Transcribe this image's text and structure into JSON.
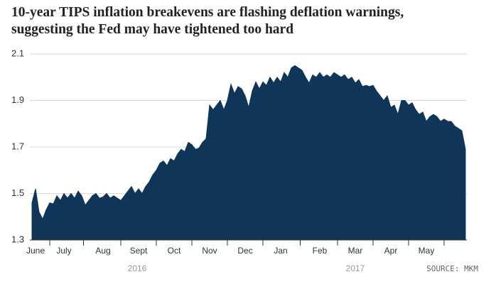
{
  "chart_data": {
    "type": "area",
    "title": "10-year TIPS inflation breakevens are flashing deflation warnings, suggesting the Fed may have tightened too hard",
    "categories": [
      null,
      "June",
      null,
      null,
      null,
      null,
      null,
      null,
      null,
      "July",
      null,
      null,
      null,
      null,
      null,
      null,
      null,
      null,
      null,
      null,
      "Aug",
      null,
      null,
      null,
      null,
      null,
      null,
      null,
      null,
      null,
      "Sept",
      null,
      null,
      null,
      null,
      null,
      null,
      null,
      null,
      null,
      "Oct",
      null,
      null,
      null,
      null,
      null,
      null,
      null,
      null,
      null,
      "Nov",
      null,
      null,
      null,
      null,
      null,
      null,
      null,
      null,
      null,
      "Dec",
      null,
      null,
      null,
      null,
      null,
      null,
      null,
      null,
      null,
      "Jan",
      null,
      null,
      null,
      null,
      null,
      null,
      null,
      null,
      null,
      null,
      "Feb",
      null,
      null,
      null,
      null,
      null,
      null,
      null,
      null,
      null,
      "Mar",
      null,
      null,
      null,
      null,
      null,
      null,
      null,
      null,
      null,
      "Apr",
      null,
      null,
      null,
      null,
      null,
      null,
      null,
      null,
      null,
      "May",
      null,
      null,
      null,
      null,
      null,
      null,
      null,
      null,
      null,
      null,
      null
    ],
    "values": [
      1.46,
      1.52,
      1.42,
      1.39,
      1.43,
      1.46,
      1.455,
      1.49,
      1.47,
      1.5,
      1.48,
      1.5,
      1.48,
      1.51,
      1.49,
      1.45,
      1.47,
      1.49,
      1.5,
      1.48,
      1.485,
      1.5,
      1.48,
      1.49,
      1.48,
      1.47,
      1.49,
      1.51,
      1.53,
      1.5,
      1.52,
      1.5,
      1.53,
      1.55,
      1.58,
      1.6,
      1.63,
      1.64,
      1.62,
      1.65,
      1.64,
      1.67,
      1.69,
      1.68,
      1.72,
      1.71,
      1.69,
      1.695,
      1.72,
      1.735,
      1.88,
      1.86,
      1.88,
      1.9,
      1.86,
      1.9,
      1.97,
      1.93,
      1.96,
      1.95,
      1.92,
      1.87,
      1.94,
      1.98,
      1.95,
      1.98,
      1.965,
      2.0,
      1.975,
      2.0,
      1.98,
      2.02,
      2.0,
      2.04,
      2.05,
      2.04,
      2.03,
      2.0,
      1.975,
      2.01,
      2.0,
      2.02,
      2.0,
      2.01,
      2.0,
      2.02,
      2.01,
      2.0,
      2.01,
      1.99,
      2.0,
      1.975,
      1.99,
      1.96,
      1.965,
      1.96,
      1.965,
      1.94,
      1.92,
      1.9,
      1.92,
      1.87,
      1.88,
      1.84,
      1.9,
      1.9,
      1.88,
      1.89,
      1.86,
      1.84,
      1.85,
      1.81,
      1.83,
      1.84,
      1.83,
      1.81,
      1.82,
      1.81,
      1.81,
      1.79,
      1.78,
      1.77,
      1.69
    ],
    "color": "#0f3658",
    "ylim": [
      1.3,
      2.1
    ],
    "yticks": [
      1.3,
      1.5,
      1.7,
      1.9,
      2.1
    ],
    "grid": true,
    "year_labels": [
      "2016",
      "2017"
    ],
    "source": "SOURCE: MKM"
  }
}
